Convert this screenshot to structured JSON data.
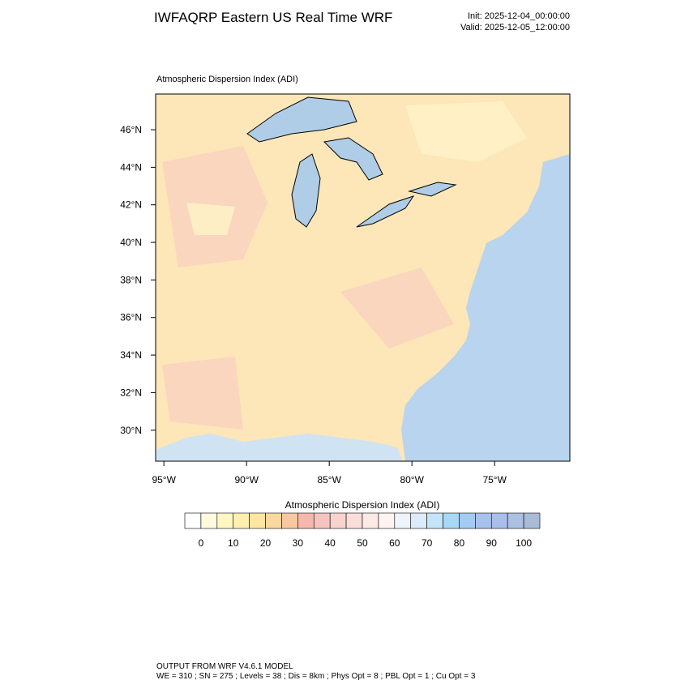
{
  "title": "IWFAQRP Eastern US Real Time WRF",
  "init": "Init: 2025-12-04_00:00:00",
  "valid": "Valid: 2025-12-05_12:00:00",
  "map": {
    "title": "Atmospheric Dispersion Index   (ADI)",
    "xlim": [
      -95.5,
      -70.45
    ],
    "ylim": [
      28.35,
      47.9
    ],
    "xticks": [
      {
        "value": -95,
        "label": "95°W"
      },
      {
        "value": -90,
        "label": "90°W"
      },
      {
        "value": -85,
        "label": "85°W"
      },
      {
        "value": -80,
        "label": "80°W"
      },
      {
        "value": -75,
        "label": "75°W"
      }
    ],
    "yticks": [
      {
        "value": 30,
        "label": "30°N"
      },
      {
        "value": 32,
        "label": "32°N"
      },
      {
        "value": 34,
        "label": "34°N"
      },
      {
        "value": 36,
        "label": "36°N"
      },
      {
        "value": 38,
        "label": "38°N"
      },
      {
        "value": 40,
        "label": "40°N"
      },
      {
        "value": 42,
        "label": "42°N"
      },
      {
        "value": 44,
        "label": "44°N"
      },
      {
        "value": 46,
        "label": "46°N"
      }
    ]
  },
  "colorbar": {
    "title": "Atmospheric Dispersion Index  (ADI)",
    "lim": [
      -5,
      105
    ],
    "colors": [
      "#ffffff",
      "#fffbdc",
      "#fff6c4",
      "#fff0b0",
      "#fde6a4",
      "#fbd8a0",
      "#f9c8a0",
      "#f5b8ac",
      "#f6c4be",
      "#f8d2cc",
      "#fbdeda",
      "#fde9e6",
      "#fff4f2",
      "#eef4fc",
      "#dcecfa",
      "#c4e4f8",
      "#a8d8f6",
      "#a4ccf2",
      "#a8c2ee",
      "#aabeea",
      "#acc0e4",
      "#a8bcd8"
    ],
    "ticks": [
      0,
      10,
      20,
      30,
      40,
      50,
      60,
      70,
      80,
      90,
      100
    ]
  },
  "footer": {
    "line1": "OUTPUT FROM WRF V4.6.1 MODEL",
    "line2": "WE = 310 ; SN = 275 ; Levels = 38 ; Dis = 8km ; Phys Opt = 8 ; PBL Opt = 1 ; Cu Opt = 3"
  }
}
